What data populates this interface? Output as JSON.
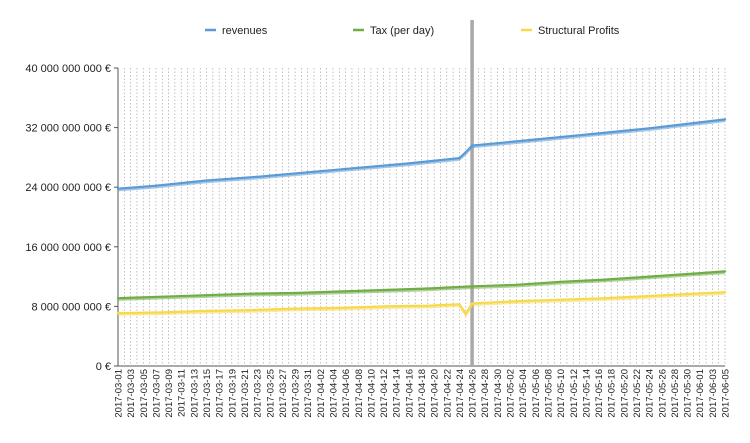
{
  "chart_data": {
    "type": "line",
    "title": "",
    "xlabel": "",
    "ylabel": "",
    "ylim": [
      0,
      40000000000
    ],
    "y_ticks": [
      {
        "value": 0,
        "label": "0 €"
      },
      {
        "value": 8000000000,
        "label": "8 000 000 000 €"
      },
      {
        "value": 16000000000,
        "label": "16 000 000 000 €"
      },
      {
        "value": 24000000000,
        "label": "24 000 000 000 €"
      },
      {
        "value": 32000000000,
        "label": "32 000 000 000 €"
      },
      {
        "value": 40000000000,
        "label": "40 000 000 000 €"
      }
    ],
    "x_start": "2017-03-01",
    "x_end": "2017-06-05",
    "x_tick_labels": [
      "2017-03-01",
      "2017-03-03",
      "2017-03-05",
      "2017-03-07",
      "2017-03-09",
      "2017-03-11",
      "2017-03-13",
      "2017-03-15",
      "2017-03-17",
      "2017-03-19",
      "2017-03-21",
      "2017-03-23",
      "2017-03-25",
      "2017-03-27",
      "2017-03-29",
      "2017-03-31",
      "2017-04-02",
      "2017-04-04",
      "2017-04-06",
      "2017-04-08",
      "2017-04-10",
      "2017-04-12",
      "2017-04-14",
      "2017-04-16",
      "2017-04-18",
      "2017-04-20",
      "2017-04-22",
      "2017-04-24",
      "2017-04-26",
      "2017-04-28",
      "2017-04-30",
      "2017-05-02",
      "2017-05-04",
      "2017-05-06",
      "2017-05-08",
      "2017-05-10",
      "2017-05-12",
      "2017-05-14",
      "2017-05-16",
      "2017-05-18",
      "2017-05-20",
      "2017-05-22",
      "2017-05-24",
      "2017-05-26",
      "2017-05-28",
      "2017-05-30",
      "2017-06-01",
      "2017-06-03",
      "2017-06-05"
    ],
    "marker_date": "2017-04-26",
    "legend_position": "top",
    "grid": "vertical dotted per day",
    "series": [
      {
        "name": "revenues",
        "color": "#5b9bd5",
        "values": [
          {
            "x": "2017-03-01",
            "y": 23800000000
          },
          {
            "x": "2017-03-07",
            "y": 24200000000
          },
          {
            "x": "2017-03-15",
            "y": 24900000000
          },
          {
            "x": "2017-03-23",
            "y": 25400000000
          },
          {
            "x": "2017-03-31",
            "y": 26000000000
          },
          {
            "x": "2017-04-08",
            "y": 26600000000
          },
          {
            "x": "2017-04-16",
            "y": 27200000000
          },
          {
            "x": "2017-04-24",
            "y": 27900000000
          },
          {
            "x": "2017-04-25",
            "y": 28700000000
          },
          {
            "x": "2017-04-26",
            "y": 29600000000
          },
          {
            "x": "2017-04-30",
            "y": 29900000000
          },
          {
            "x": "2017-05-06",
            "y": 30400000000
          },
          {
            "x": "2017-05-12",
            "y": 30900000000
          },
          {
            "x": "2017-05-18",
            "y": 31400000000
          },
          {
            "x": "2017-05-24",
            "y": 31900000000
          },
          {
            "x": "2017-05-30",
            "y": 32500000000
          },
          {
            "x": "2017-06-05",
            "y": 33100000000
          }
        ]
      },
      {
        "name": "Tax (per day)",
        "color": "#70ad47",
        "values": [
          {
            "x": "2017-03-01",
            "y": 9100000000
          },
          {
            "x": "2017-03-08",
            "y": 9300000000
          },
          {
            "x": "2017-03-15",
            "y": 9500000000
          },
          {
            "x": "2017-03-22",
            "y": 9700000000
          },
          {
            "x": "2017-03-29",
            "y": 9800000000
          },
          {
            "x": "2017-04-05",
            "y": 10000000000
          },
          {
            "x": "2017-04-12",
            "y": 10200000000
          },
          {
            "x": "2017-04-19",
            "y": 10400000000
          },
          {
            "x": "2017-04-26",
            "y": 10700000000
          },
          {
            "x": "2017-05-03",
            "y": 10900000000
          },
          {
            "x": "2017-05-10",
            "y": 11300000000
          },
          {
            "x": "2017-05-17",
            "y": 11600000000
          },
          {
            "x": "2017-05-24",
            "y": 12000000000
          },
          {
            "x": "2017-05-31",
            "y": 12400000000
          },
          {
            "x": "2017-06-05",
            "y": 12700000000
          }
        ]
      },
      {
        "name": "Structural Profits",
        "color": "#f7d94c",
        "values": [
          {
            "x": "2017-03-01",
            "y": 7100000000
          },
          {
            "x": "2017-03-08",
            "y": 7200000000
          },
          {
            "x": "2017-03-15",
            "y": 7400000000
          },
          {
            "x": "2017-03-22",
            "y": 7500000000
          },
          {
            "x": "2017-03-29",
            "y": 7700000000
          },
          {
            "x": "2017-04-05",
            "y": 7800000000
          },
          {
            "x": "2017-04-12",
            "y": 8000000000
          },
          {
            "x": "2017-04-19",
            "y": 8100000000
          },
          {
            "x": "2017-04-24",
            "y": 8300000000
          },
          {
            "x": "2017-04-25",
            "y": 7000000000
          },
          {
            "x": "2017-04-26",
            "y": 8400000000
          },
          {
            "x": "2017-05-03",
            "y": 8700000000
          },
          {
            "x": "2017-05-10",
            "y": 8900000000
          },
          {
            "x": "2017-05-17",
            "y": 9100000000
          },
          {
            "x": "2017-05-24",
            "y": 9400000000
          },
          {
            "x": "2017-05-31",
            "y": 9700000000
          },
          {
            "x": "2017-06-05",
            "y": 9900000000
          }
        ]
      }
    ]
  }
}
